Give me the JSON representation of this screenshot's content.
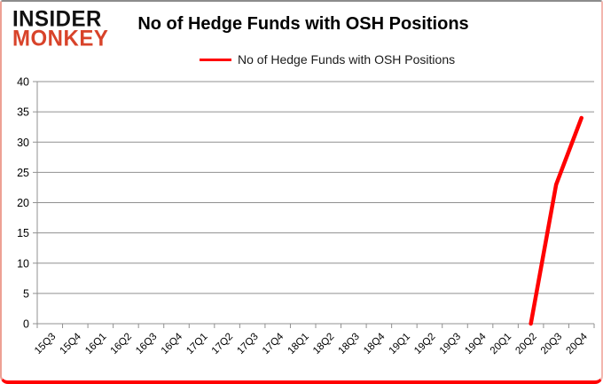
{
  "header": {
    "logo_line1": "INSIDER",
    "logo_line2": "MONKEY",
    "title": "No of Hedge Funds with OSH Positions",
    "legend_label": "No of Hedge Funds with OSH Positions"
  },
  "colors": {
    "series": "#ff0000",
    "logo_accent": "#d8432a",
    "grid": "#909090",
    "axis_label": "#000000",
    "frame_bottom": "#ff0000"
  },
  "chart_data": {
    "type": "line",
    "title": "No of Hedge Funds with OSH Positions",
    "xlabel": "",
    "ylabel": "",
    "ylim": [
      0,
      40
    ],
    "ytick_step": 5,
    "grid": true,
    "legend_position": "top-center",
    "x_label_rotation": -45,
    "categories": [
      "15Q3",
      "15Q4",
      "16Q1",
      "16Q2",
      "16Q3",
      "16Q4",
      "17Q1",
      "17Q2",
      "17Q3",
      "17Q4",
      "18Q1",
      "18Q2",
      "18Q3",
      "18Q4",
      "19Q1",
      "19Q2",
      "19Q3",
      "19Q4",
      "20Q1",
      "20Q2",
      "20Q3",
      "20Q4"
    ],
    "series": [
      {
        "name": "No of Hedge Funds with OSH Positions",
        "color": "#ff0000",
        "values": [
          null,
          null,
          null,
          null,
          null,
          null,
          null,
          null,
          null,
          null,
          null,
          null,
          null,
          null,
          null,
          null,
          null,
          null,
          null,
          0,
          23,
          34
        ]
      }
    ]
  }
}
